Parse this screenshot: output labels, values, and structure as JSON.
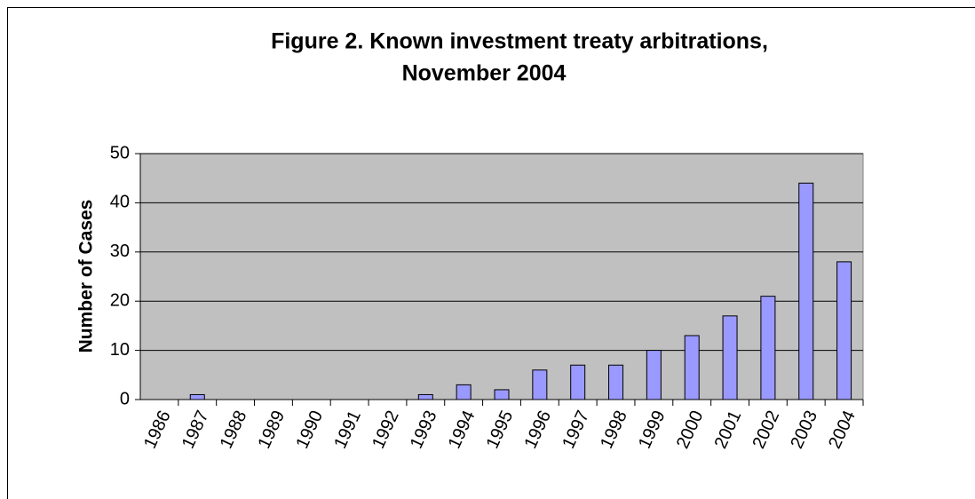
{
  "chart_data": {
    "type": "bar",
    "title": [
      "Figure 2. Known investment treaty arbitrations,",
      "November 2004"
    ],
    "y_label": "Number of Cases",
    "categories": [
      "1986",
      "1987",
      "1988",
      "1989",
      "1990",
      "1991",
      "1992",
      "1993",
      "1994",
      "1995",
      "1996",
      "1997",
      "1998",
      "1999",
      "2000",
      "2001",
      "2002",
      "2003",
      "2004"
    ],
    "values": [
      0,
      1,
      0,
      0,
      0,
      0,
      0,
      1,
      3,
      2,
      6,
      7,
      7,
      10,
      13,
      17,
      21,
      44,
      28
    ],
    "color": "#9999ff",
    "plot_background": "#c0c0c0",
    "ylim": [
      0,
      50
    ],
    "yticks": [
      0,
      10,
      20,
      30,
      40,
      50
    ],
    "grid": true
  }
}
